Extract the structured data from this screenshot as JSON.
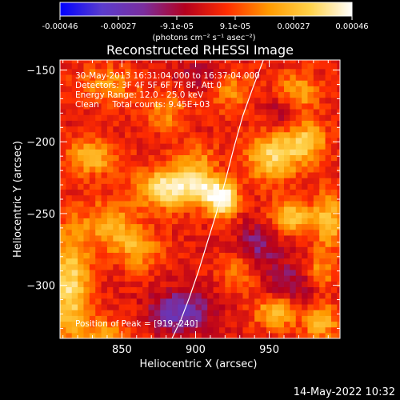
{
  "chart_data": {
    "type": "heatmap",
    "title": "Reconstructed RHESSI Image",
    "xlabel": "Heliocentric X (arcsec)",
    "ylabel": "Heliocentric Y (arcsec)",
    "xlim": [
      808,
      998
    ],
    "ylim": [
      -337,
      -143
    ],
    "xticks": [
      850,
      900,
      950
    ],
    "yticks": [
      -150,
      -200,
      -250,
      -300
    ],
    "colorbar": {
      "ticks": [
        "-0.00046",
        "-0.00027",
        "-9.1e-05",
        "9.1e-05",
        "0.00027",
        "0.00046"
      ],
      "range": [
        -0.00046,
        0.00046
      ],
      "unit": "(photons cm⁻² s⁻¹ asec⁻²)",
      "colormap": [
        "#0000ff",
        "#5a3ccd",
        "#7a2e9e",
        "#b4001e",
        "#ff2d00",
        "#ff9a00",
        "#ffd24a",
        "#ffffff"
      ]
    },
    "annotations": [
      "30-May-2013 16:31:04.000 to 16:37:04.000",
      "Detectors: 3F 4F 5F 6F 7F 8F, Att 0",
      "Energy Range: 12.0 - 25.0 keV",
      "Clean     Total counts: 9.45E+03"
    ],
    "peak_label": "Position of Peak = [919,-240]",
    "limb_curve": {
      "x": [
        946,
        939,
        932,
        926,
        920,
        914,
        908,
        902,
        896,
        890,
        884
      ],
      "y": [
        -143,
        -162,
        -182,
        -204,
        -228,
        -250,
        -270,
        -290,
        -308,
        -324,
        -337
      ]
    },
    "sources": [
      {
        "x": 919,
        "y": -240,
        "value": 0.00046,
        "sx": 7,
        "sy": 8
      },
      {
        "x": 882,
        "y": -232,
        "value": 0.0004,
        "sx": 14,
        "sy": 10
      },
      {
        "x": 905,
        "y": -232,
        "value": 0.0003,
        "sx": 8,
        "sy": 8
      },
      {
        "x": 830,
        "y": -210,
        "value": 0.00024,
        "sx": 12,
        "sy": 9
      },
      {
        "x": 815,
        "y": -300,
        "value": 0.00034,
        "sx": 9,
        "sy": 28
      },
      {
        "x": 842,
        "y": -258,
        "value": 0.00023,
        "sx": 12,
        "sy": 12
      },
      {
        "x": 862,
        "y": -275,
        "value": 0.00021,
        "sx": 10,
        "sy": 10
      },
      {
        "x": 952,
        "y": -210,
        "value": 0.00031,
        "sx": 12,
        "sy": 12
      },
      {
        "x": 975,
        "y": -200,
        "value": 0.00028,
        "sx": 10,
        "sy": 10
      },
      {
        "x": 964,
        "y": -252,
        "value": 0.0003,
        "sx": 9,
        "sy": 8
      },
      {
        "x": 990,
        "y": -255,
        "value": 0.00026,
        "sx": 8,
        "sy": 14
      },
      {
        "x": 955,
        "y": -318,
        "value": 0.0003,
        "sx": 10,
        "sy": 8
      },
      {
        "x": 985,
        "y": -325,
        "value": 0.00026,
        "sx": 8,
        "sy": 9
      },
      {
        "x": 840,
        "y": -160,
        "value": 0.00018,
        "sx": 14,
        "sy": 9
      },
      {
        "x": 880,
        "y": -178,
        "value": 0.00017,
        "sx": 10,
        "sy": 10
      },
      {
        "x": 925,
        "y": -165,
        "value": 0.00016,
        "sx": 10,
        "sy": 9
      },
      {
        "x": 970,
        "y": -165,
        "value": 0.0002,
        "sx": 10,
        "sy": 10
      },
      {
        "x": 900,
        "y": -212,
        "value": 0.00016,
        "sx": 10,
        "sy": 8
      },
      {
        "x": 840,
        "y": -335,
        "value": 0.00022,
        "sx": 10,
        "sy": 8
      },
      {
        "x": 930,
        "y": -290,
        "value": 0.00016,
        "sx": 9,
        "sy": 9
      },
      {
        "x": 985,
        "y": -290,
        "value": 0.00018,
        "sx": 8,
        "sy": 8
      }
    ],
    "negative_regions": [
      {
        "x": 890,
        "y": -318,
        "value": -0.0003,
        "sx": 14,
        "sy": 10
      },
      {
        "x": 942,
        "y": -272,
        "value": -0.00018,
        "sx": 10,
        "sy": 12
      },
      {
        "x": 965,
        "y": -300,
        "value": -0.00016,
        "sx": 12,
        "sy": 12
      },
      {
        "x": 958,
        "y": -180,
        "value": -0.00012,
        "sx": 8,
        "sy": 8
      },
      {
        "x": 900,
        "y": -152,
        "value": -0.00012,
        "sx": 10,
        "sy": 7
      }
    ],
    "grid": false,
    "legend": "none"
  },
  "timestamp": "14-May-2022 10:32"
}
